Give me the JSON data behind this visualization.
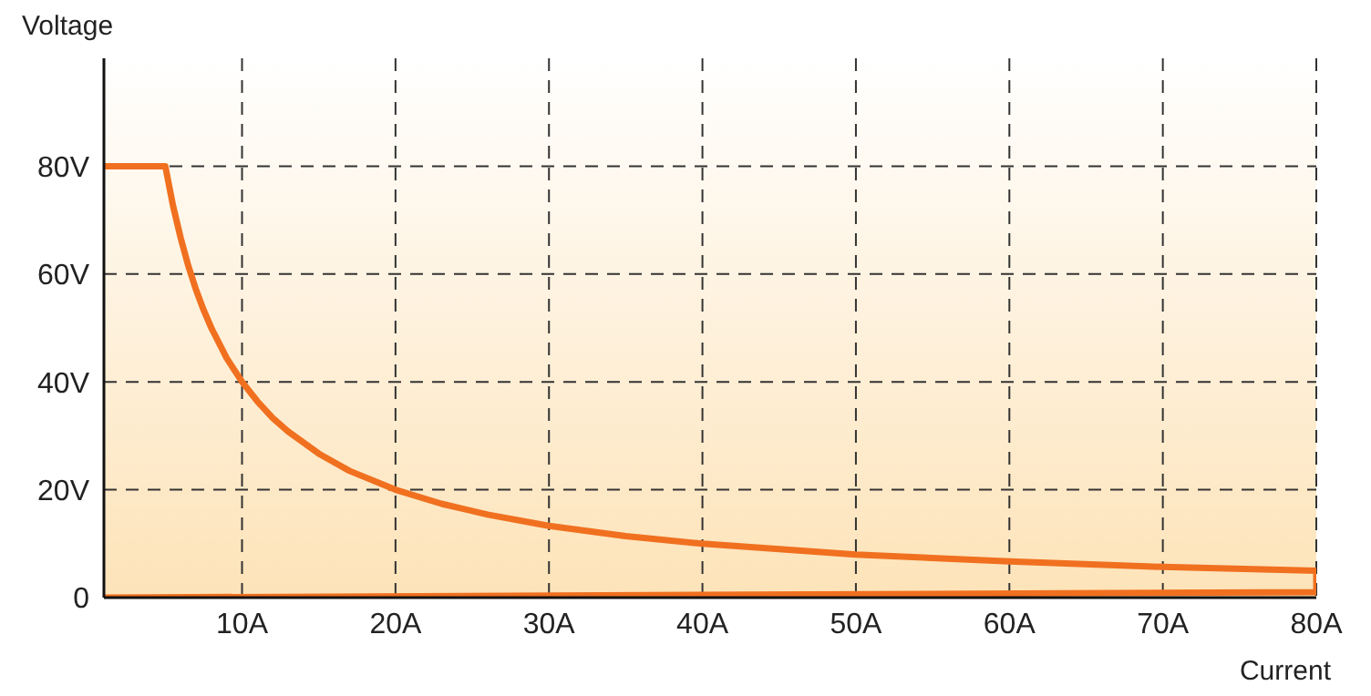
{
  "chart_data": {
    "type": "line",
    "xlabel": "Current",
    "ylabel": "Voltage",
    "x": [
      1,
      5,
      5.5,
      6,
      6.5,
      7,
      7.5,
      8,
      9,
      10,
      11,
      12,
      13,
      15,
      17,
      20,
      23,
      26,
      30,
      35,
      40,
      50,
      60,
      70,
      80,
      80,
      1
    ],
    "series": [
      {
        "color": "#f07020",
        "values": [
          80,
          80,
          72.7,
          66.7,
          61.5,
          57.1,
          53.3,
          50,
          44.4,
          40,
          36.4,
          33.3,
          30.8,
          26.7,
          23.5,
          20,
          17.4,
          15.4,
          13.3,
          11.4,
          10,
          8,
          6.7,
          5.7,
          5,
          1,
          0
        ]
      }
    ],
    "xlim": [
      1,
      80
    ],
    "ylim": [
      0,
      100
    ],
    "xticks": [
      {
        "value": 10,
        "label": "10A"
      },
      {
        "value": 20,
        "label": "20A"
      },
      {
        "value": 30,
        "label": "30A"
      },
      {
        "value": 40,
        "label": "40A"
      },
      {
        "value": 50,
        "label": "50A"
      },
      {
        "value": 60,
        "label": "60A"
      },
      {
        "value": 70,
        "label": "70A"
      },
      {
        "value": 80,
        "label": "80A"
      }
    ],
    "yticks": [
      0,
      {
        "value": 20,
        "label": "20V"
      },
      {
        "value": 40,
        "label": "40V"
      },
      {
        "value": 60,
        "label": "60V"
      },
      {
        "value": 80,
        "label": "80V"
      }
    ],
    "grid": true,
    "marker": "none",
    "line_style": "solid"
  }
}
